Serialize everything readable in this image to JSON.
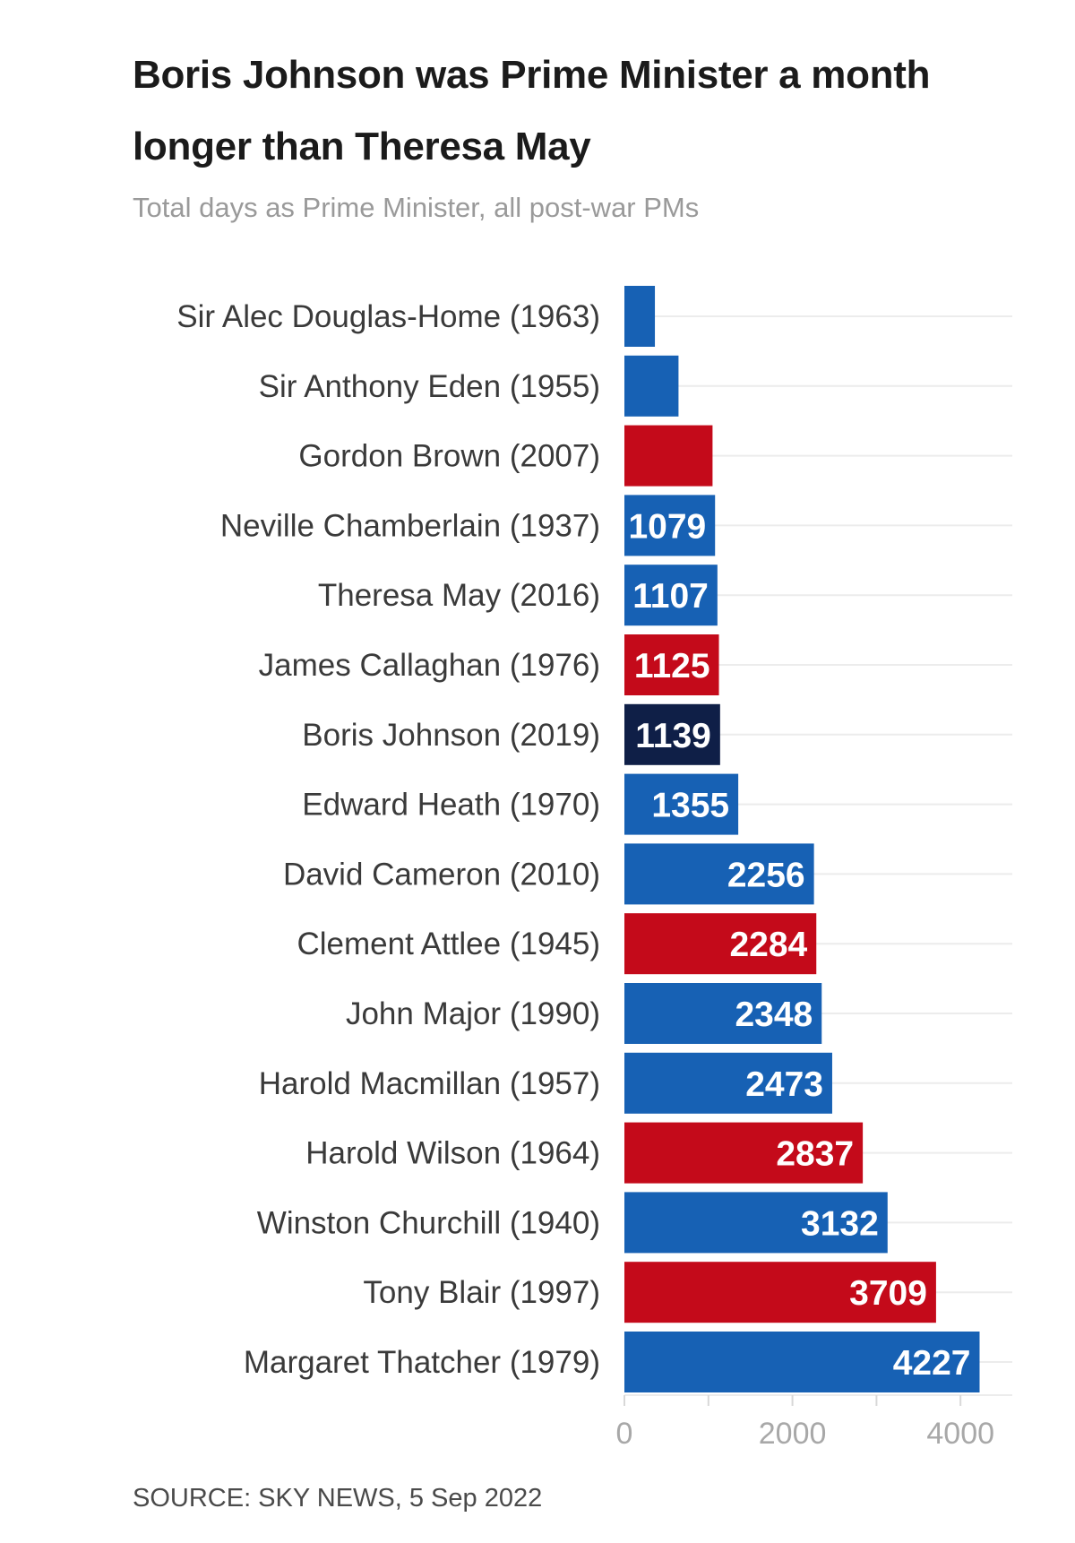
{
  "title": "Boris Johnson was Prime Minister a month longer than Theresa May",
  "subtitle": "Total days as Prime Minister, all post-war PMs",
  "source": "SOURCE: SKY NEWS, 5 Sep 2022",
  "colors": {
    "conservative": "#1761b4",
    "labour": "#c40a1a",
    "highlight": "#0f1f47",
    "grid": "#ececec",
    "tick_text": "#a8a8a8",
    "label_text": "#3a3a3a"
  },
  "chart_data": {
    "type": "bar",
    "orientation": "horizontal",
    "title": "Boris Johnson was Prime Minister a month longer than Theresa May",
    "subtitle": "Total days as Prime Minister, all post-war PMs",
    "xlim": [
      0,
      4500
    ],
    "xticks": [
      0,
      2000,
      4000
    ],
    "grid": true,
    "categories": [
      "Sir Alec Douglas-Home (1963)",
      "Sir Anthony Eden (1955)",
      "Gordon Brown (2007)",
      "Neville Chamberlain (1937)",
      "Theresa May (2016)",
      "James Callaghan (1976)",
      "Boris Johnson (2019)",
      "Edward Heath (1970)",
      "David Cameron (2010)",
      "Clement Attlee (1945)",
      "John Major (1990)",
      "Harold Macmillan (1957)",
      "Harold Wilson (1964)",
      "Winston Churchill (1940)",
      "Tony Blair (1997)",
      "Margaret Thatcher (1979)"
    ],
    "values": [
      363,
      644,
      1049,
      1079,
      1107,
      1125,
      1139,
      1355,
      2256,
      2284,
      2348,
      2473,
      2837,
      3132,
      3709,
      4227
    ],
    "show_value_labels": [
      false,
      false,
      false,
      true,
      true,
      true,
      true,
      true,
      true,
      true,
      true,
      true,
      true,
      true,
      true,
      true
    ],
    "party": [
      "conservative",
      "conservative",
      "labour",
      "conservative",
      "conservative",
      "labour",
      "highlight",
      "conservative",
      "conservative",
      "labour",
      "conservative",
      "conservative",
      "labour",
      "conservative",
      "labour",
      "conservative"
    ]
  }
}
